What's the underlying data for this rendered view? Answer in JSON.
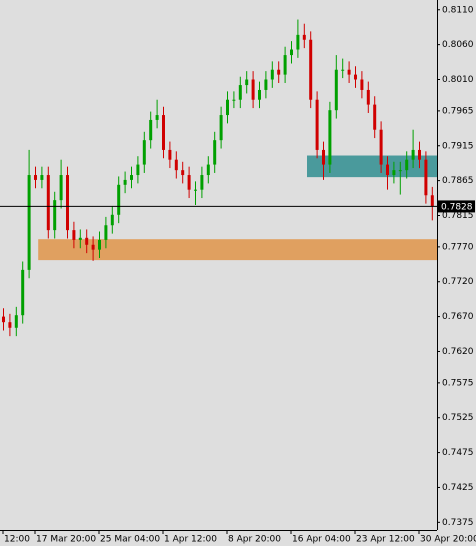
{
  "chart_data": {
    "type": "candlestick",
    "categories": [
      "12:00",
      null,
      null,
      null,
      null,
      "17 Mar 20:00",
      null,
      null,
      null,
      null,
      null,
      null,
      null,
      null,
      null,
      "25 Mar 04:00",
      null,
      null,
      null,
      null,
      null,
      null,
      null,
      null,
      null,
      "1 Apr 12:00",
      null,
      null,
      null,
      null,
      null,
      null,
      null,
      null,
      null,
      "8 Apr 20:00",
      null,
      null,
      null,
      null,
      null,
      null,
      null,
      null,
      null,
      "16 Apr 04:00",
      null,
      null,
      null,
      null,
      null,
      null,
      null,
      null,
      null,
      "23 Apr 12:00",
      null,
      null,
      null,
      null,
      null,
      null,
      null,
      null,
      null,
      "30 Apr 20:00",
      null,
      null
    ],
    "open": [
      0.767,
      0.7662,
      0.7654,
      0.7672,
      0.7737,
      0.7873,
      0.7866,
      0.7873,
      0.7794,
      0.7837,
      0.7873,
      0.7794,
      0.778,
      0.7783,
      0.7773,
      0.7766,
      0.778,
      0.7801,
      0.7816,
      0.7859,
      0.7866,
      0.7873,
      0.7888,
      0.7923,
      0.7952,
      0.7959,
      0.7909,
      0.7895,
      0.788,
      0.7873,
      0.7852,
      0.7852,
      0.7873,
      0.7888,
      0.7923,
      0.7959,
      0.7981,
      0.7981,
      0.8002,
      0.801,
      0.7981,
      0.7995,
      0.801,
      0.8024,
      0.8017,
      0.8045,
      0.8053,
      0.8074,
      0.8067,
      0.7981,
      0.7909,
      0.7888,
      0.7966,
      0.8024,
      0.8024,
      0.8017,
      0.801,
      0.7995,
      0.7974,
      0.7938,
      0.7888,
      0.7873,
      0.788,
      0.788,
      0.7895,
      0.7909,
      0.7895,
      0.7844
    ],
    "high": [
      0.7682,
      0.7674,
      0.7684,
      0.7749,
      0.7909,
      0.7885,
      0.7885,
      0.7885,
      0.7849,
      0.7895,
      0.7885,
      0.7806,
      0.7795,
      0.7795,
      0.7785,
      0.7792,
      0.7813,
      0.7828,
      0.7871,
      0.7878,
      0.7885,
      0.79,
      0.7935,
      0.7964,
      0.7981,
      0.7971,
      0.7921,
      0.7907,
      0.7892,
      0.7885,
      0.7864,
      0.7885,
      0.79,
      0.7935,
      0.7971,
      0.7993,
      0.7993,
      0.8014,
      0.8022,
      0.8022,
      0.8007,
      0.8022,
      0.8036,
      0.8036,
      0.8057,
      0.8065,
      0.8096,
      0.809,
      0.8079,
      0.7993,
      0.7921,
      0.7978,
      0.8045,
      0.804,
      0.8036,
      0.8029,
      0.8022,
      0.8007,
      0.7986,
      0.795,
      0.79,
      0.7892,
      0.7892,
      0.7907,
      0.7938,
      0.7921,
      0.7907,
      0.7856
    ],
    "low": [
      0.765,
      0.7642,
      0.7642,
      0.766,
      0.7725,
      0.7854,
      0.7854,
      0.7782,
      0.7782,
      0.7825,
      0.7782,
      0.7768,
      0.7768,
      0.7761,
      0.775,
      0.7754,
      0.7768,
      0.7789,
      0.7804,
      0.7847,
      0.7854,
      0.7861,
      0.7876,
      0.7911,
      0.794,
      0.7897,
      0.7883,
      0.7868,
      0.7861,
      0.784,
      0.783,
      0.784,
      0.7861,
      0.7876,
      0.7911,
      0.7947,
      0.7969,
      0.7969,
      0.799,
      0.7969,
      0.7969,
      0.7983,
      0.7998,
      0.8005,
      0.8005,
      0.8033,
      0.8041,
      0.8055,
      0.7969,
      0.7897,
      0.7866,
      0.7876,
      0.7954,
      0.8012,
      0.8005,
      0.7998,
      0.7983,
      0.7962,
      0.7926,
      0.7876,
      0.7852,
      0.7861,
      0.7845,
      0.7868,
      0.7883,
      0.7883,
      0.7832,
      0.7808
    ],
    "close": [
      0.7662,
      0.7654,
      0.7672,
      0.7737,
      0.7873,
      0.7866,
      0.7873,
      0.7794,
      0.7837,
      0.7873,
      0.7794,
      0.778,
      0.7783,
      0.7773,
      0.7766,
      0.778,
      0.7801,
      0.7816,
      0.7859,
      0.7866,
      0.7873,
      0.7888,
      0.7923,
      0.7952,
      0.7959,
      0.7909,
      0.7895,
      0.788,
      0.7873,
      0.7852,
      0.7852,
      0.7873,
      0.7888,
      0.7923,
      0.7959,
      0.7981,
      0.7981,
      0.8002,
      0.801,
      0.7981,
      0.7995,
      0.801,
      0.8024,
      0.8017,
      0.8045,
      0.8053,
      0.8074,
      0.8067,
      0.7981,
      0.7909,
      0.7888,
      0.7966,
      0.8024,
      0.8024,
      0.8017,
      0.801,
      0.7995,
      0.7974,
      0.7938,
      0.7888,
      0.7873,
      0.788,
      0.788,
      0.7895,
      0.7909,
      0.7895,
      0.7844,
      0.7828
    ],
    "up_color": "#00a000",
    "down_color": "#d00000",
    "ylim": [
      0.7364,
      0.8124
    ],
    "yticks": [
      {
        "value": 0.811,
        "label": "0.8110"
      },
      {
        "value": 0.806,
        "label": "0.8060"
      },
      {
        "value": 0.801,
        "label": "0.8010"
      },
      0.7965,
      {
        "value": 0.7915,
        "label": "0.7915"
      },
      0.7865,
      {
        "value": 0.7815,
        "label": "0.7815"
      },
      {
        "value": 0.777,
        "label": "0.7770"
      },
      {
        "value": 0.772,
        "label": "0.7720"
      },
      {
        "value": 0.767,
        "label": "0.7670"
      },
      {
        "value": 0.762,
        "label": "0.7620"
      },
      0.7575,
      {
        "value": 0.7525,
        "label": "0.7525"
      },
      {
        "value": 0.7475,
        "label": "0.7475"
      },
      {
        "value": 0.7425,
        "label": "0.7425"
      },
      {
        "value": 0.7375,
        "label": "0.7375"
      }
    ],
    "last_price": 0.7828,
    "zones": [
      {
        "from": 0.787,
        "to": 0.7901,
        "start": 48,
        "color": "#4a9a9c"
      },
      {
        "from": 0.7751,
        "to": 0.7781,
        "start": 6,
        "color": "#e0a060"
      }
    ]
  }
}
